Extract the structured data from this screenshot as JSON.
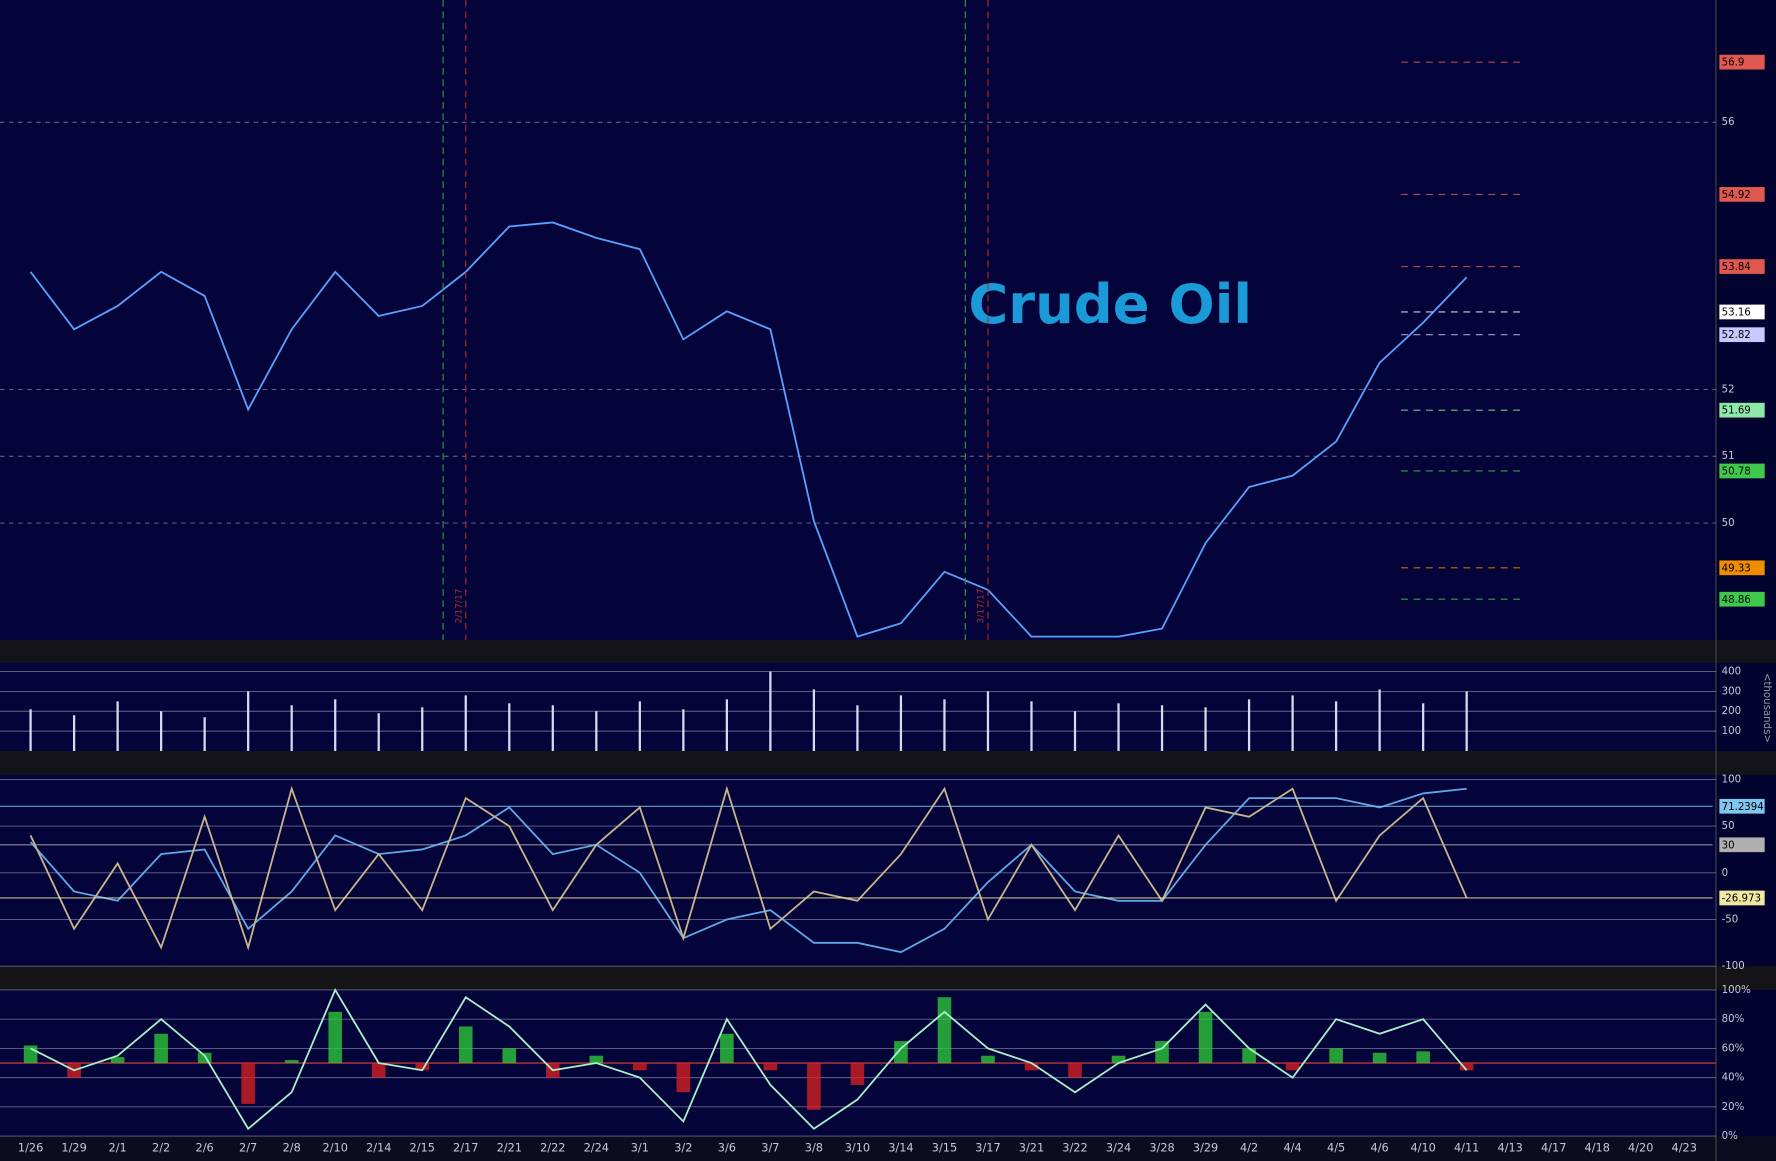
{
  "chart_data": [
    {
      "type": "line",
      "title": "Crude Oil",
      "color": "#5aa0ff",
      "values": [
        53.76,
        52.9,
        53.25,
        53.76,
        53.4,
        51.7,
        52.9,
        53.76,
        53.1,
        53.25,
        53.76,
        54.44,
        54.5,
        54.27,
        54.1,
        52.75,
        53.17,
        52.9,
        50.03,
        48.3,
        48.5,
        49.27,
        49.0,
        48.3,
        48.3,
        48.3,
        48.42,
        49.7,
        50.54,
        50.71,
        51.22,
        52.4,
        53.0,
        53.68,
        null,
        null,
        null,
        null,
        null
      ],
      "ylim": [
        48.25,
        57.83
      ],
      "yticks": [
        50,
        51,
        52,
        56
      ],
      "grid": true,
      "levels": [
        {
          "value": 56.9,
          "color": "#e0584f"
        },
        {
          "value": 54.92,
          "color": "#e0584f"
        },
        {
          "value": 53.84,
          "color": "#e0584f"
        },
        {
          "value": 53.16,
          "color": "#ffffff"
        },
        {
          "value": 52.82,
          "color": "#c8c8ff"
        },
        {
          "value": 51.69,
          "color": "#8ee8a8"
        },
        {
          "value": 50.78,
          "color": "#3ec94a"
        },
        {
          "value": 49.33,
          "color": "#f08c00"
        },
        {
          "value": 48.86,
          "color": "#3ec94a"
        }
      ],
      "events": [
        {
          "category": "2/17",
          "label": "2/17/17"
        },
        {
          "category": "3/17",
          "label": "3/17/17"
        }
      ]
    },
    {
      "type": "bar",
      "y_label": "<thousands>",
      "color": "#d8d8f0",
      "values": [
        210,
        180,
        250,
        200,
        170,
        300,
        230,
        260,
        190,
        220,
        280,
        240,
        230,
        200,
        250,
        210,
        260,
        400,
        310,
        230,
        280,
        260,
        300,
        250,
        200,
        240,
        230,
        220,
        260,
        280,
        250,
        310,
        240,
        300,
        null,
        null,
        null,
        null,
        null
      ],
      "ylim": [
        0,
        445
      ],
      "yticks": [
        100,
        200,
        300,
        400
      ]
    },
    {
      "type": "line",
      "series": [
        {
          "color": "#5fa8e8",
          "values": [
            33,
            -20,
            -30,
            20,
            25,
            -60,
            -20,
            40,
            20,
            25,
            40,
            70,
            20,
            30,
            0,
            -70,
            -50,
            -40,
            -75,
            -75,
            -85,
            -60,
            -10,
            30,
            -20,
            -30,
            -30,
            30,
            80,
            80,
            80,
            70,
            85,
            90,
            null,
            null,
            null,
            null,
            null
          ]
        },
        {
          "color": "#c8b48c",
          "values": [
            40,
            -60,
            10,
            -80,
            60,
            -80,
            90,
            -40,
            20,
            -40,
            80,
            50,
            -40,
            30,
            70,
            -70,
            90,
            -60,
            -20,
            -30,
            20,
            90,
            -50,
            30,
            -40,
            40,
            -30,
            70,
            60,
            90,
            -30,
            40,
            80,
            -27,
            null,
            null,
            null,
            null,
            null
          ]
        }
      ],
      "ylim": [
        -100,
        105
      ],
      "yticks": [
        100,
        50,
        0,
        -50,
        -100
      ],
      "levels": [
        {
          "value": 71.2394,
          "color": "#7ec8f0"
        },
        {
          "value": 30,
          "color": "#b0b0b0"
        },
        {
          "value": -26.973,
          "color": "#f0e8a0"
        }
      ]
    },
    {
      "type": "line",
      "categories": [
        "1/26",
        "1/29",
        "2/1",
        "2/2",
        "2/6",
        "2/7",
        "2/8",
        "2/10",
        "2/14",
        "2/15",
        "2/17",
        "2/21",
        "2/22",
        "2/24",
        "3/1",
        "3/2",
        "3/6",
        "3/7",
        "3/8",
        "3/10",
        "3/14",
        "3/15",
        "3/17",
        "3/21",
        "3/22",
        "3/24",
        "3/28",
        "3/29",
        "4/2",
        "4/4",
        "4/5",
        "4/6",
        "4/10",
        "4/11",
        "4/13",
        "4/17",
        "4/18",
        "4/20",
        "4/23"
      ],
      "series": [
        {
          "color": "#a8f0c8",
          "values": [
            60,
            45,
            55,
            80,
            55,
            5,
            30,
            100,
            50,
            45,
            95,
            75,
            45,
            50,
            40,
            10,
            80,
            35,
            5,
            25,
            60,
            85,
            60,
            50,
            30,
            50,
            60,
            90,
            60,
            40,
            80,
            70,
            80,
            45,
            null,
            null,
            null,
            null,
            null
          ]
        }
      ],
      "histogram": {
        "baseline": 50,
        "up_color": "#2fd13a",
        "down_color": "#e02020",
        "values": [
          62,
          40,
          54,
          70,
          57,
          22,
          52,
          85,
          40,
          45,
          75,
          60,
          40,
          55,
          45,
          30,
          70,
          45,
          18,
          35,
          65,
          95,
          55,
          45,
          40,
          55,
          65,
          85,
          60,
          45,
          60,
          57,
          58,
          45,
          null,
          null,
          null,
          null,
          null
        ]
      },
      "ylim": [
        0,
        100
      ],
      "yticks": [
        {
          "value": 100,
          "label": "100%"
        },
        {
          "value": 80,
          "label": "80%"
        },
        {
          "value": 60,
          "label": "60%"
        },
        {
          "value": 40,
          "label": "40%"
        },
        {
          "value": 20,
          "label": "20%"
        },
        {
          "value": 0,
          "label": "0%"
        }
      ]
    }
  ]
}
